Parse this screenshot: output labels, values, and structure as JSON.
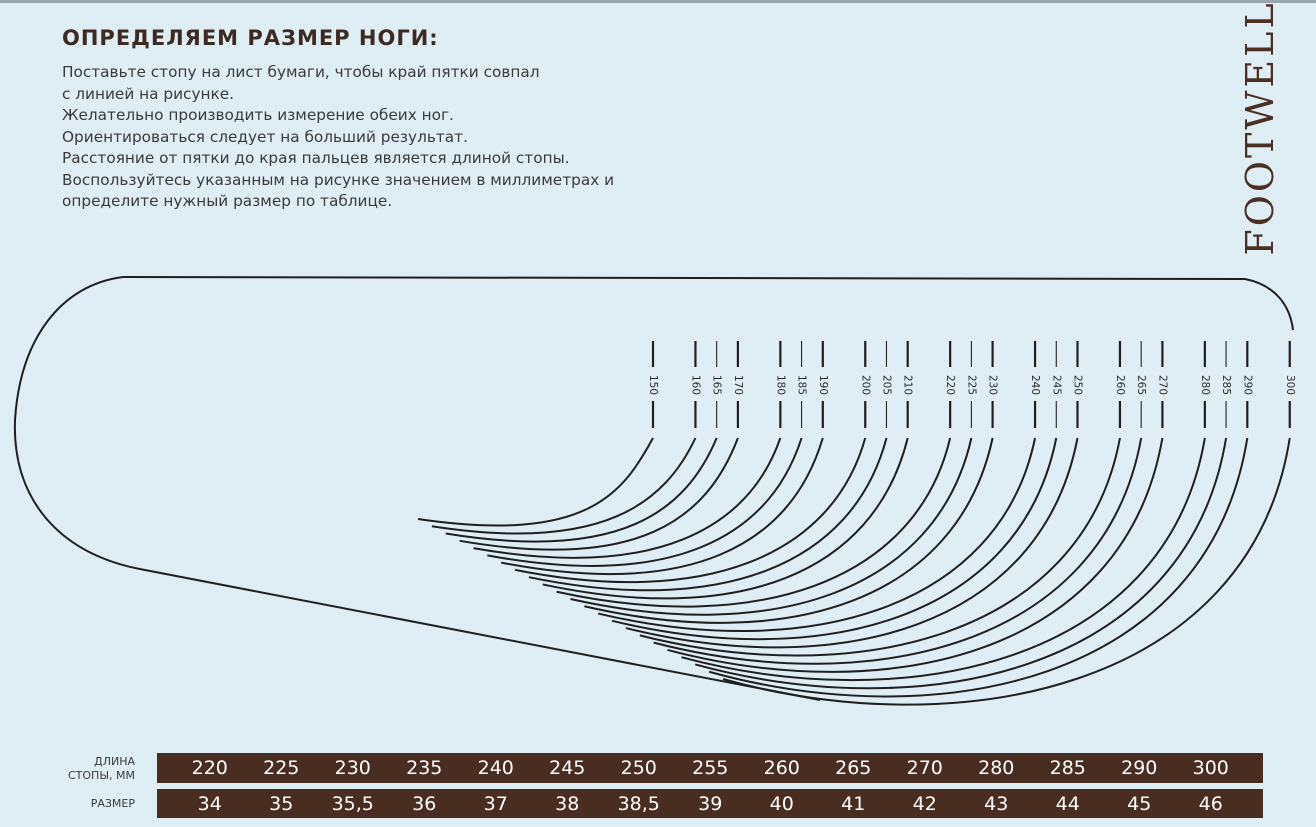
{
  "title": "ОПРЕДЕЛЯЕМ РАЗМЕР НОГИ:",
  "instructions": [
    "Поставьте стопу на лист бумаги, чтобы край пятки совпал",
    "с линией на рисунке.",
    "Желательно производить измерение обеих ног.",
    "Ориентироваться следует на больший результат.",
    "Расстояние от пятки до края пальцев является длиной стопы.",
    "Воспользуйтесь указанным на рисунке значением в миллиметрах и",
    "определите нужный размер по таблице."
  ],
  "brand": "FOOTWELL",
  "diagram": {
    "marks": [
      "150",
      "160",
      "165",
      "170",
      "180",
      "185",
      "190",
      "200",
      "205",
      "210",
      "220",
      "225",
      "230",
      "240",
      "245",
      "250",
      "260",
      "265",
      "270",
      "280",
      "285",
      "290",
      "300"
    ]
  },
  "table": {
    "length_label": [
      "ДЛИНА",
      "СТОПЫ, ММ"
    ],
    "size_label": "РАЗМЕР",
    "lengths": [
      "220",
      "225",
      "230",
      "235",
      "240",
      "245",
      "250",
      "255",
      "260",
      "265",
      "270",
      "280",
      "285",
      "290",
      "300"
    ],
    "sizes": [
      "34",
      "35",
      "35,5",
      "36",
      "37",
      "38",
      "38,5",
      "39",
      "40",
      "41",
      "42",
      "43",
      "44",
      "45",
      "46"
    ]
  },
  "colors": {
    "background": "#dfeef5",
    "brown": "#4a2d21",
    "line": "#1f1f1f"
  }
}
